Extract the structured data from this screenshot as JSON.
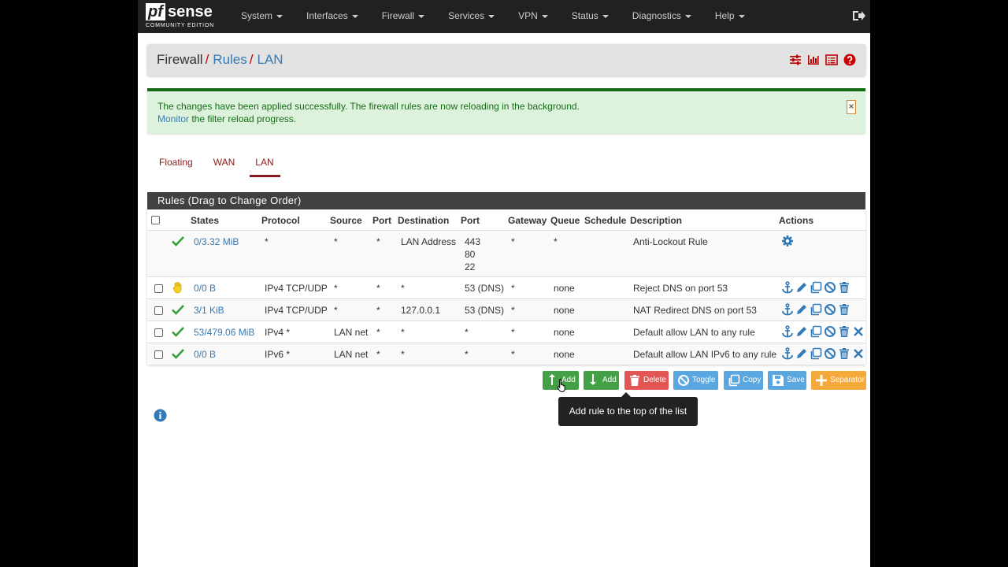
{
  "brand": {
    "logo_pf": "pf",
    "logo_sense": "sense",
    "edition": "COMMUNITY EDITION"
  },
  "nav": {
    "items": [
      {
        "label": "System"
      },
      {
        "label": "Interfaces"
      },
      {
        "label": "Firewall"
      },
      {
        "label": "Services"
      },
      {
        "label": "VPN"
      },
      {
        "label": "Status"
      },
      {
        "label": "Diagnostics"
      },
      {
        "label": "Help"
      }
    ],
    "logout_icon": "logout-icon"
  },
  "breadcrumb": {
    "root": "Firewall",
    "sep1": "/",
    "level2": "Rules",
    "sep2": "/",
    "level3": "LAN",
    "icons": [
      "sliders-icon",
      "bar-chart-icon",
      "list-icon",
      "help-icon"
    ]
  },
  "alert": {
    "message": "The changes have been applied successfully. The firewall rules are now reloading in the background.",
    "monitor_link": "Monitor",
    "monitor_rest": " the filter reload progress.",
    "close": "×"
  },
  "tabs": [
    {
      "label": "Floating"
    },
    {
      "label": "WAN"
    },
    {
      "label": "LAN",
      "active": true
    }
  ],
  "rules": {
    "title": "Rules (Drag to Change Order)",
    "columns": {
      "states": "States",
      "protocol": "Protocol",
      "source": "Source",
      "sport": "Port",
      "destination": "Destination",
      "dport": "Port",
      "gateway": "Gateway",
      "queue": "Queue",
      "schedule": "Schedule",
      "description": "Description",
      "actions": "Actions"
    },
    "rows": [
      {
        "status": "pass",
        "states": "0/3.32 MiB",
        "protocol": "*",
        "source": "*",
        "sport": "*",
        "destination": "LAN Address",
        "dport1": "443",
        "dport2": "80",
        "dport3": "22",
        "gateway": "*",
        "queue": "*",
        "schedule": "",
        "description": "Anti-Lockout Rule"
      },
      {
        "status": "reject",
        "states": "0/0 B",
        "protocol": "IPv4 TCP/UDP",
        "source": "*",
        "sport": "*",
        "destination": "*",
        "dport": "53 (DNS)",
        "gateway": "*",
        "queue": "none",
        "schedule": "",
        "description": "Reject DNS on port 53"
      },
      {
        "status": "pass",
        "states": "3/1 KiB",
        "protocol": "IPv4 TCP/UDP",
        "source": "*",
        "sport": "*",
        "destination": "127.0.0.1",
        "dport": "53 (DNS)",
        "gateway": "*",
        "queue": "none",
        "schedule": "",
        "description": "NAT Redirect DNS on port 53"
      },
      {
        "status": "pass",
        "states": "53/479.06 MiB",
        "protocol": "IPv4 *",
        "source": "LAN net",
        "sport": "*",
        "destination": "*",
        "dport": "*",
        "gateway": "*",
        "queue": "none",
        "schedule": "",
        "description": "Default allow LAN to any rule"
      },
      {
        "status": "pass",
        "states": "0/0 B",
        "protocol": "IPv6 *",
        "source": "LAN net",
        "sport": "*",
        "destination": "*",
        "dport": "*",
        "gateway": "*",
        "queue": "none",
        "schedule": "",
        "description": "Default allow LAN IPv6 to any rule"
      }
    ]
  },
  "buttons": {
    "add_top": "Add",
    "add_bottom": "Add",
    "delete": "Delete",
    "toggle": "Toggle",
    "copy": "Copy",
    "save": "Save",
    "separator": "Separator"
  },
  "tooltip": "Add rule to the top of the list",
  "colors": {
    "navbar": "#212121",
    "link": "#337ab7",
    "tab_active": "#8b1a1a",
    "success_text": "#156b15",
    "success_bg": "#ddf2dd",
    "btn_green": "#43a047",
    "btn_red": "#e15555",
    "btn_blue": "#5aa6e0",
    "btn_orange": "#f5a93b"
  }
}
